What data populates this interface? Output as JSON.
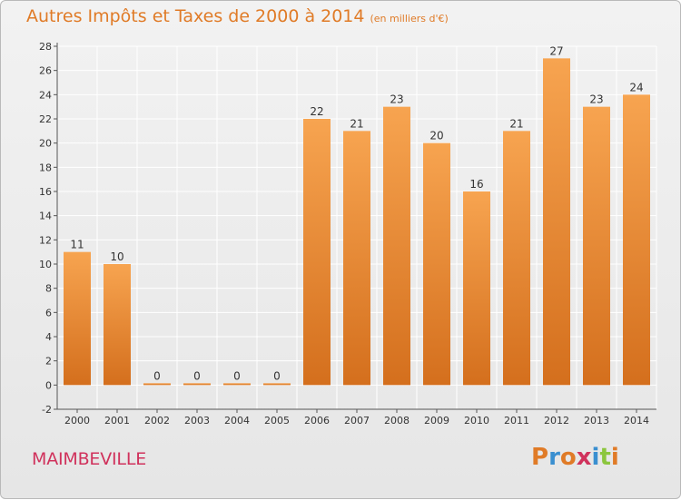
{
  "header": {
    "title": "Autres Impôts et Taxes de 2000 à 2014",
    "unit": "(en milliers d'€)"
  },
  "footer": {
    "town": "MAIMBEVILLE",
    "logo_letters": [
      "P",
      "r",
      "o",
      "x",
      "i",
      "t",
      "i"
    ],
    "logo_colors": [
      "#e07b27",
      "#3a8fd0",
      "#e07b27",
      "#d0325c",
      "#3a8fd0",
      "#8cc63e",
      "#e07b27"
    ]
  },
  "colors": {
    "bar_light": "#f7a450",
    "bar_dark": "#d46f1d",
    "title": "#e07b27",
    "town": "#d0325c",
    "grid": "#ffffff"
  },
  "chart_data": {
    "type": "bar",
    "categories": [
      "2000",
      "2001",
      "2002",
      "2003",
      "2004",
      "2005",
      "2006",
      "2007",
      "2008",
      "2009",
      "2010",
      "2011",
      "2012",
      "2013",
      "2014"
    ],
    "values": [
      11,
      10,
      0,
      0,
      0,
      0,
      22,
      21,
      23,
      20,
      16,
      21,
      27,
      23,
      24
    ],
    "data_labels": [
      "11",
      "10",
      "0",
      "0",
      "0",
      "0",
      "22",
      "21",
      "23",
      "20",
      "16",
      "21",
      "27",
      "23",
      "24"
    ],
    "title": "Autres Impôts et Taxes de 2000 à 2014",
    "xlabel": "",
    "ylabel": "",
    "ylim": [
      -2,
      28
    ],
    "yticks": [
      "-2",
      "0",
      "2",
      "4",
      "6",
      "8",
      "10",
      "12",
      "14",
      "16",
      "18",
      "20",
      "22",
      "24",
      "26",
      "28"
    ],
    "grid": true
  }
}
